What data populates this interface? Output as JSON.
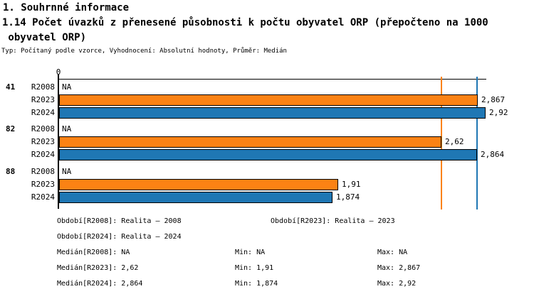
{
  "header": {
    "title1": "1. Souhrnné informace",
    "title2": "1.14 Počet úvazků z přenesené působnosti k počtu obyvatel ORP (přepočteno na 1000",
    "title3": " obyvatel ORP)",
    "meta": "Typ: Počítaný podle vzorce, Vyhodnocení: Absolutní hodnoty, Průměr: Medián"
  },
  "chart_data": {
    "type": "bar",
    "orientation": "horizontal",
    "title": "1.14 Počet úvazků z přenesené působnosti k počtu obyvatel ORP (přepočteno na 1000 obyvatel ORP)",
    "xlabel": "",
    "ylabel": "",
    "xlim": [
      0,
      2.92
    ],
    "grid": false,
    "axis": {
      "zero_label": "0"
    },
    "series_names": [
      "R2008",
      "R2023",
      "R2024"
    ],
    "series_colors": {
      "R2023": "#fb8214",
      "R2024": "#1f77b4"
    },
    "reference_lines": [
      {
        "series": "R2023",
        "label": "median-R2023",
        "value": 2.62,
        "color": "#fb8214"
      },
      {
        "series": "R2024",
        "label": "median-R2024",
        "value": 2.864,
        "color": "#1f77b4"
      }
    ],
    "groups": [
      {
        "label": "41",
        "rows": [
          {
            "series": "R2008",
            "value": null,
            "display": "NA"
          },
          {
            "series": "R2023",
            "value": 2.867,
            "display": "2,867"
          },
          {
            "series": "R2024",
            "value": 2.92,
            "display": "2,92"
          }
        ]
      },
      {
        "label": "82",
        "rows": [
          {
            "series": "R2008",
            "value": null,
            "display": "NA"
          },
          {
            "series": "R2023",
            "value": 2.62,
            "display": "2,62"
          },
          {
            "series": "R2024",
            "value": 2.864,
            "display": "2,864"
          }
        ]
      },
      {
        "label": "88",
        "rows": [
          {
            "series": "R2008",
            "value": null,
            "display": "NA"
          },
          {
            "series": "R2023",
            "value": 1.91,
            "display": "1,91"
          },
          {
            "series": "R2024",
            "value": 1.874,
            "display": "1,874"
          }
        ]
      }
    ]
  },
  "legend": {
    "period_r2008": "Období[R2008]: Realita – 2008",
    "period_r2023": "Období[R2023]: Realita – 2023",
    "period_r2024": "Období[R2024]: Realita – 2024",
    "stats": [
      {
        "median": "Medián[R2008]: NA",
        "min": "Min: NA",
        "max": "Max: NA"
      },
      {
        "median": "Medián[R2023]: 2,62",
        "min": "Min: 1,91",
        "max": "Max: 2,867"
      },
      {
        "median": "Medián[R2024]: 2,864",
        "min": "Min: 1,874",
        "max": "Max: 2,92"
      }
    ]
  }
}
